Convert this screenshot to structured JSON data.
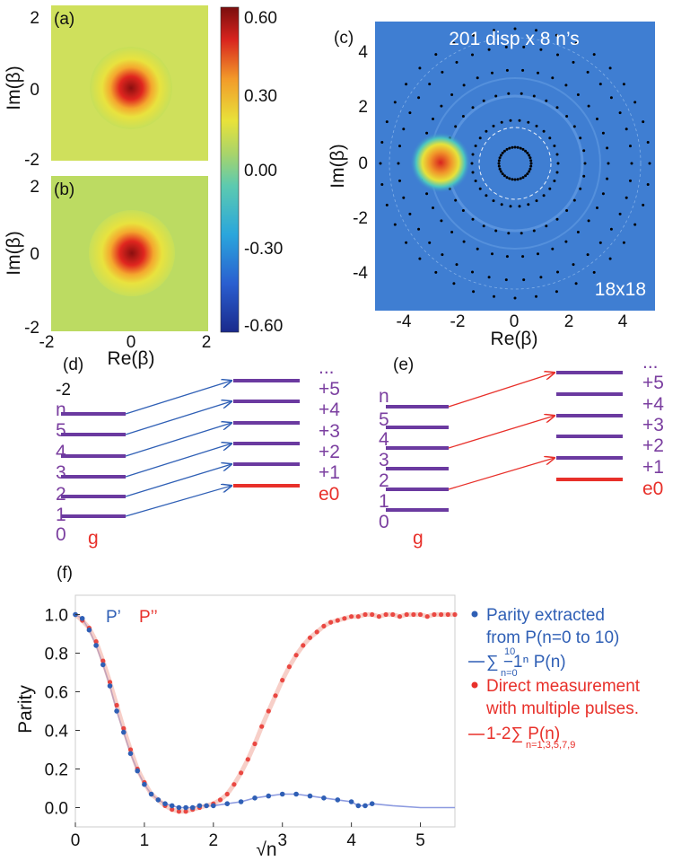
{
  "panel_labels": {
    "a": "(a)",
    "b": "(b)",
    "c": "(c)",
    "d": "(d)",
    "e": "(e)",
    "f": "(f)"
  },
  "colorbar": {
    "ticks": [
      "0.60",
      "0.30",
      "0.00",
      "-0.30",
      "-0.60"
    ],
    "colors": [
      "#1a2a8c",
      "#2a7fd8",
      "#2ec4c4",
      "#8ed07a",
      "#e8e23a",
      "#f29a2a",
      "#d8241e",
      "#7a0e0e"
    ]
  },
  "panel_ab": {
    "ylabel": "Im(β)",
    "xlabel": "Re(β)",
    "a_yticks": [
      "2",
      "0",
      "-2"
    ],
    "b_yticks": [
      "2",
      "0",
      "-2"
    ],
    "xticks": [
      "-2",
      "0",
      "2"
    ]
  },
  "panel_c": {
    "title": "201 disp x 8 n’s",
    "note": "18x18",
    "xlabel": "Re(β)",
    "ylabel": "Im(β)",
    "xticks": [
      "-4",
      "-2",
      "0",
      "2",
      "4"
    ],
    "yticks": [
      "4",
      "2",
      "0",
      "-2",
      "-4"
    ]
  },
  "panel_d": {
    "left_labels": [
      "-2",
      "n",
      "5",
      "4",
      "3",
      "2",
      "1",
      "0"
    ],
    "ground_label": "g",
    "right_labels": [
      "...",
      "+5",
      "+4",
      "+3",
      "+2",
      "+1",
      "e0"
    ],
    "arrow_color": "#2f5fb5"
  },
  "panel_e": {
    "left_labels": [
      "n",
      "5",
      "4",
      "3",
      "2",
      "1",
      "0"
    ],
    "ground_label": "g",
    "right_labels": [
      "...",
      "+5",
      "+4",
      "+3",
      "+2",
      "+1",
      "e0"
    ],
    "arrow_color": "#e8302a"
  },
  "chart_data": {
    "type": "scatter",
    "xlabel": "√n",
    "ylabel": "Parity",
    "xlim": [
      0,
      5.5
    ],
    "ylim": [
      -0.1,
      1.1
    ],
    "xticks": [
      "0",
      "1",
      "2",
      "3",
      "4",
      "5"
    ],
    "yticks": [
      "1.0",
      "0.8",
      "0.6",
      "0.4",
      "0.2",
      "0.0"
    ],
    "annotations": [
      "P’",
      "P’’"
    ],
    "series": [
      {
        "name": "Parity extracted from P(n=0 to 10)",
        "color": "#2f5fb5",
        "x": [
          0.0,
          0.1,
          0.2,
          0.3,
          0.4,
          0.5,
          0.6,
          0.7,
          0.8,
          0.9,
          1.0,
          1.1,
          1.2,
          1.3,
          1.4,
          1.5,
          1.6,
          1.7,
          1.8,
          1.9,
          2.0,
          2.2,
          2.4,
          2.6,
          2.8,
          3.0,
          3.2,
          3.4,
          3.6,
          3.8,
          4.0,
          4.1,
          4.2,
          4.3
        ],
        "y": [
          1.0,
          0.98,
          0.92,
          0.84,
          0.74,
          0.63,
          0.5,
          0.39,
          0.28,
          0.19,
          0.12,
          0.07,
          0.04,
          0.02,
          0.01,
          0.0,
          0.0,
          0.0,
          0.01,
          0.01,
          0.01,
          0.02,
          0.03,
          0.05,
          0.06,
          0.07,
          0.07,
          0.06,
          0.05,
          0.04,
          0.03,
          0.01,
          0.01,
          0.02
        ]
      },
      {
        "name": "Direct measurement with multiple pulses.",
        "color": "#e8302a",
        "x": [
          0.0,
          0.1,
          0.2,
          0.3,
          0.4,
          0.5,
          0.6,
          0.7,
          0.8,
          0.9,
          1.0,
          1.1,
          1.2,
          1.3,
          1.4,
          1.5,
          1.6,
          1.7,
          1.8,
          1.9,
          2.0,
          2.1,
          2.2,
          2.3,
          2.4,
          2.5,
          2.6,
          2.7,
          2.8,
          2.9,
          3.0,
          3.1,
          3.2,
          3.3,
          3.4,
          3.5,
          3.6,
          3.7,
          3.8,
          3.9,
          4.0,
          4.1,
          4.2,
          4.3,
          4.4,
          4.5,
          4.6,
          4.7,
          4.8,
          4.9,
          5.0,
          5.1,
          5.2,
          5.3,
          5.4,
          5.5
        ],
        "y": [
          1.0,
          0.97,
          0.93,
          0.86,
          0.76,
          0.65,
          0.53,
          0.41,
          0.3,
          0.2,
          0.13,
          0.07,
          0.04,
          0.01,
          -0.01,
          -0.02,
          -0.02,
          -0.01,
          0.0,
          0.01,
          0.02,
          0.04,
          0.07,
          0.12,
          0.18,
          0.25,
          0.33,
          0.42,
          0.5,
          0.58,
          0.66,
          0.73,
          0.79,
          0.84,
          0.88,
          0.91,
          0.94,
          0.96,
          0.97,
          0.98,
          0.99,
          0.99,
          1.0,
          1.0,
          0.99,
          1.0,
          1.0,
          0.99,
          1.0,
          1.0,
          1.0,
          0.99,
          1.0,
          1.0,
          1.0,
          1.0
        ]
      }
    ],
    "legend": [
      {
        "marker": "dot",
        "color": "#2f5fb5",
        "text": [
          "Parity extracted",
          "from P(n=0 to 10)"
        ]
      },
      {
        "marker": "line",
        "color": "#2f5fb5",
        "text": [
          "∑ −1ⁿ P(n)"
        ],
        "sum_limits": [
          "10",
          "n=0"
        ]
      },
      {
        "marker": "dot",
        "color": "#e8302a",
        "text": [
          "Direct measurement",
          "with multiple pulses."
        ]
      },
      {
        "marker": "line",
        "color": "#e8302a",
        "text": [
          "1-2∑ P(n)"
        ],
        "sum_limits": [
          "",
          "n=1,3,5,7,9"
        ]
      }
    ]
  }
}
